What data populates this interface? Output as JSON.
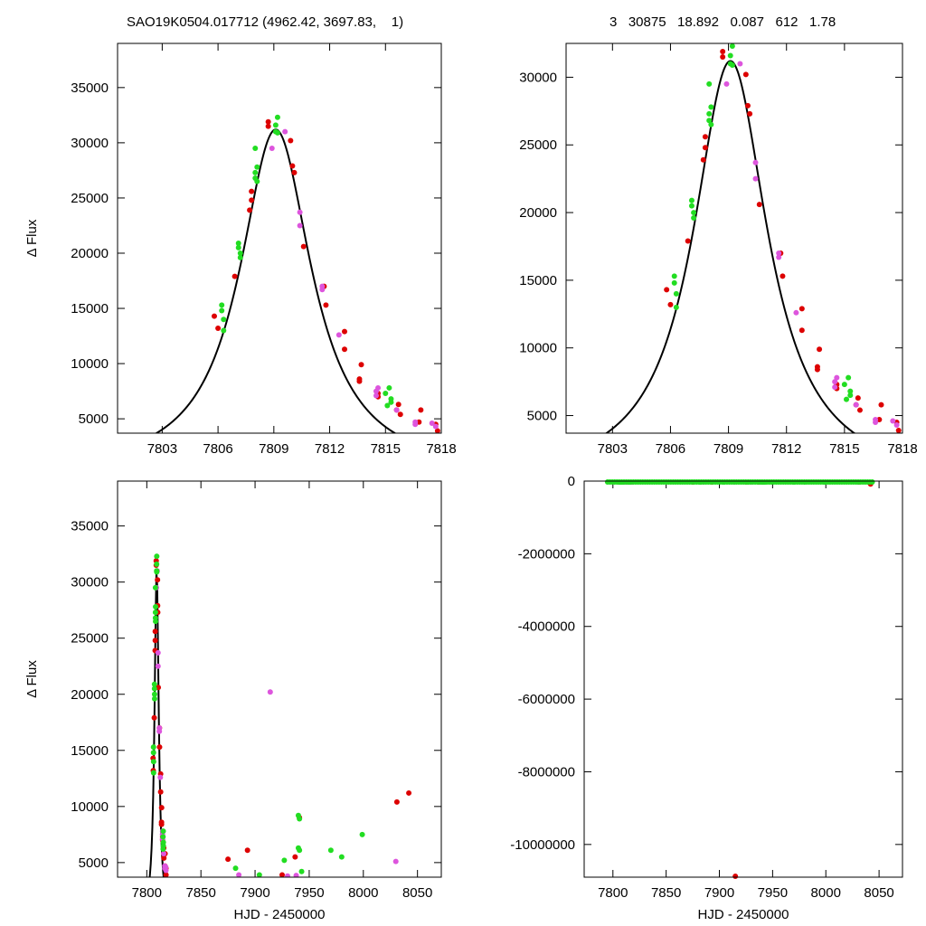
{
  "header": {
    "title": "SAO19K0504.017712 (4962.42, 3697.83,    1)",
    "params": "3   30875   18.892   0.087   612   1.78"
  },
  "colors": {
    "red": "#dd0000",
    "magenta": "#dd55dd",
    "green": "#22dd22",
    "model": "#000000",
    "axis": "#000000"
  },
  "model": {
    "t0": 7809.1,
    "peak": 31200,
    "halfwidth": 2.35,
    "baseline": 0
  },
  "points": {
    "green": [
      [
        7806.2,
        15300
      ],
      [
        7806.2,
        14800
      ],
      [
        7806.3,
        14000
      ],
      [
        7806.3,
        13000
      ],
      [
        7807.1,
        20900
      ],
      [
        7807.1,
        20500
      ],
      [
        7807.2,
        20000
      ],
      [
        7807.2,
        19600
      ],
      [
        7808.0,
        27300
      ],
      [
        7808.0,
        26800
      ],
      [
        7808.1,
        27800
      ],
      [
        7808.1,
        26500
      ],
      [
        7808.0,
        29500
      ],
      [
        7809.1,
        31600
      ],
      [
        7809.1,
        31000
      ],
      [
        7809.2,
        32300
      ],
      [
        7809.2,
        30900
      ],
      [
        7815.0,
        7300
      ],
      [
        7815.2,
        7800
      ],
      [
        7815.3,
        6500
      ],
      [
        7815.1,
        6200
      ],
      [
        7815.3,
        6800
      ],
      [
        7882,
        4500
      ],
      [
        7904,
        3900
      ],
      [
        7927,
        5200
      ],
      [
        7940,
        9200
      ],
      [
        7941,
        8900
      ],
      [
        7940,
        6300
      ],
      [
        7941,
        6100
      ],
      [
        7943,
        4200
      ],
      [
        7970,
        6100
      ],
      [
        7980,
        5500
      ],
      [
        7999,
        7500
      ]
    ],
    "red": [
      [
        7805.8,
        14300
      ],
      [
        7806.0,
        13200
      ],
      [
        7806.9,
        17900
      ],
      [
        7807.7,
        23900
      ],
      [
        7807.8,
        24800
      ],
      [
        7807.8,
        25600
      ],
      [
        7808.7,
        31900
      ],
      [
        7808.7,
        31500
      ],
      [
        7809.9,
        30200
      ],
      [
        7810.0,
        27900
      ],
      [
        7810.1,
        27300
      ],
      [
        7810.6,
        20600
      ],
      [
        7811.7,
        17000
      ],
      [
        7811.8,
        15300
      ],
      [
        7812.8,
        12900
      ],
      [
        7812.8,
        11300
      ],
      [
        7813.7,
        9900
      ],
      [
        7813.6,
        8600
      ],
      [
        7813.6,
        8400
      ],
      [
        7814.6,
        7000
      ],
      [
        7814.6,
        7300
      ],
      [
        7815.7,
        6300
      ],
      [
        7815.6,
        5800
      ],
      [
        7815.8,
        5400
      ],
      [
        7816.9,
        5800
      ],
      [
        7816.8,
        4700
      ],
      [
        7817.7,
        4500
      ],
      [
        7817.8,
        3900
      ],
      [
        7875,
        5300
      ],
      [
        7893,
        6100
      ],
      [
        7925,
        3900
      ],
      [
        7937,
        5500
      ],
      [
        7941,
        9000
      ],
      [
        8031,
        10400
      ],
      [
        8042,
        11200
      ]
    ],
    "magenta": [
      [
        7808.9,
        29500
      ],
      [
        7809.6,
        31000
      ],
      [
        7810.4,
        23700
      ],
      [
        7810.4,
        22500
      ],
      [
        7811.6,
        17000
      ],
      [
        7811.6,
        16700
      ],
      [
        7812.5,
        12600
      ],
      [
        7814.5,
        7500
      ],
      [
        7814.6,
        7800
      ],
      [
        7814.5,
        7100
      ],
      [
        7815.6,
        5800
      ],
      [
        7816.6,
        4700
      ],
      [
        7816.6,
        4500
      ],
      [
        7817.5,
        4600
      ],
      [
        7817.7,
        4300
      ],
      [
        7885,
        3900
      ],
      [
        7914,
        20200
      ],
      [
        7930,
        3800
      ],
      [
        7938,
        3850
      ],
      [
        8030,
        5100
      ]
    ],
    "far": [
      [
        7915,
        -10900000
      ],
      [
        8042,
        -80000
      ]
    ]
  },
  "chart_data": [
    {
      "type": "scatter",
      "position": "top-left",
      "title": "SAO19K0504.017712 (4962.42, 3697.83,    1)",
      "xlabel": "",
      "ylabel": "Δ Flux",
      "xlim": [
        7800.6,
        7818
      ],
      "ylim": [
        3700,
        39000
      ],
      "xticks": [
        7803,
        7806,
        7809,
        7812,
        7815,
        7818
      ],
      "yticks": [
        5000,
        10000,
        15000,
        20000,
        25000,
        30000,
        35000
      ],
      "series": [
        {
          "name": "",
          "color": "red"
        },
        {
          "name": "",
          "color": "magenta"
        },
        {
          "name": "",
          "color": "green"
        }
      ]
    },
    {
      "type": "scatter",
      "position": "top-right",
      "title": "3   30875   18.892   0.087   612   1.78",
      "xlabel": "",
      "ylabel": "",
      "xlim": [
        7800.6,
        7818
      ],
      "ylim": [
        3700,
        32500
      ],
      "xticks": [
        7803,
        7806,
        7809,
        7812,
        7815,
        7818
      ],
      "yticks": [
        5000,
        10000,
        15000,
        20000,
        25000,
        30000
      ]
    },
    {
      "type": "scatter",
      "position": "bottom-left",
      "title": "",
      "xlabel": "HJD - 2450000",
      "ylabel": "Δ Flux",
      "xlim": [
        7773,
        8072
      ],
      "ylim": [
        3700,
        39000
      ],
      "xticks": [
        7800,
        7850,
        7900,
        7950,
        8000,
        8050
      ],
      "yticks": [
        5000,
        10000,
        15000,
        20000,
        25000,
        30000,
        35000
      ]
    },
    {
      "type": "scatter",
      "position": "bottom-right",
      "title": "",
      "xlabel": "HJD - 2450000",
      "ylabel": "",
      "xlim": [
        7773,
        8072
      ],
      "ylim": [
        -10900000,
        0
      ],
      "xticks": [
        7800,
        7850,
        7900,
        7950,
        8000,
        8050
      ],
      "yticks": [
        0,
        -2000000,
        -4000000,
        -6000000,
        -8000000,
        -10000000
      ]
    }
  ]
}
